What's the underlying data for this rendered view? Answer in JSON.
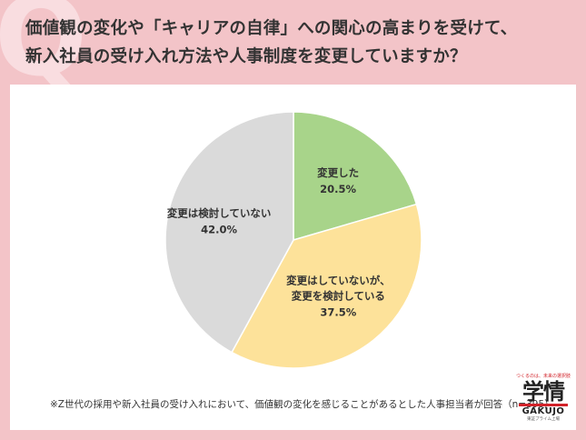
{
  "title_lines": [
    "価値観の変化や「キャリアの自律」への関心の高まりを受けて、",
    "新入社員の受け入れ方法や人事制度を変更していますか？"
  ],
  "chart_data": {
    "type": "pie",
    "title": "価値観の変化や「キャリアの自律」への関心の高まりを受けて、新入社員の受け入れ方法や人事制度を変更していますか？",
    "start_angle_deg": 0,
    "direction": "clockwise",
    "slices": [
      {
        "label": "変更した",
        "value": 20.5,
        "value_label": "20.5%",
        "color": "#a8d48a"
      },
      {
        "label": "変更はしていないが、変更を検討している",
        "label_lines": [
          "変更はしていないが、",
          "変更を検討している"
        ],
        "value": 37.5,
        "value_label": "37.5%",
        "color": "#fde29a"
      },
      {
        "label": "変更は検討していない",
        "value": 42.0,
        "value_label": "42.0%",
        "color": "#dadada"
      }
    ]
  },
  "footnote": "※Z世代の採用や新入社員の受け入れにおいて、価値観の変化を感じることがあるとした人事担当者が回答（n=395）",
  "logo": {
    "tagline": "つくるのは、未来の選択肢",
    "kanji": "学情",
    "roman": "GAKUJO",
    "sub": "東証プライム上場"
  }
}
